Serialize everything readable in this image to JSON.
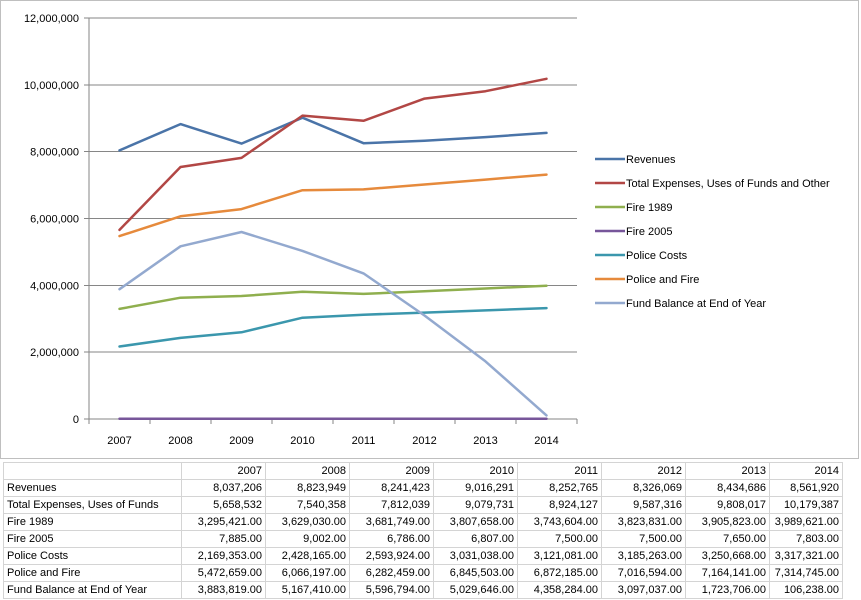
{
  "chart_data": {
    "type": "line",
    "categories": [
      "2007",
      "2008",
      "2009",
      "2010",
      "2011",
      "2012",
      "2013",
      "2014"
    ],
    "ylim": [
      0,
      12000000
    ],
    "yticks": [
      "0",
      "2,000,000",
      "4,000,000",
      "6,000,000",
      "8,000,000",
      "10,000,000",
      "12,000,000"
    ],
    "ytick_values": [
      0,
      2000000,
      4000000,
      6000000,
      8000000,
      10000000,
      12000000
    ],
    "grid": true,
    "legend_position": "right",
    "series": [
      {
        "name": "Revenues",
        "color": "#4a74a8",
        "values": [
          8037206,
          8823949,
          8241423,
          9016291,
          8252765,
          8326069,
          8434686,
          8561920
        ]
      },
      {
        "name": "Total Expenses, Uses of Funds and Other",
        "color": "#b24745",
        "values": [
          5658532,
          7540358,
          7812039,
          9079731,
          8924127,
          9587316,
          9808017,
          10179387
        ]
      },
      {
        "name": "Fire 1989",
        "color": "#8faf4e",
        "values": [
          3295421,
          3629030,
          3681749,
          3807658,
          3743604,
          3823831,
          3905823,
          3989621
        ]
      },
      {
        "name": "Fire 2005",
        "color": "#77569a",
        "values": [
          7885,
          9002,
          6786,
          6807,
          7500,
          7500,
          7650,
          7803
        ]
      },
      {
        "name": "Police Costs",
        "color": "#3b97ad",
        "values": [
          2169353,
          2428165,
          2593924,
          3031038,
          3121081,
          3185263,
          3250668,
          3317321
        ]
      },
      {
        "name": "Police and Fire",
        "color": "#e68a3c",
        "values": [
          5472659,
          6066197,
          6282459,
          6845503,
          6872185,
          7016594,
          7164141,
          7314745
        ]
      },
      {
        "name": "Fund Balance at End of Year",
        "color": "#93a9cf",
        "values": [
          3883819,
          5167410,
          5596794,
          5029646,
          4358284,
          3097037,
          1723706,
          106238
        ]
      }
    ]
  },
  "table": {
    "header": [
      "",
      "2007",
      "2008",
      "2009",
      "2010",
      "2011",
      "2012",
      "2013",
      "2014"
    ],
    "rows": [
      [
        "Revenues",
        "8,037,206",
        "8,823,949",
        "8,241,423",
        "9,016,291",
        "8,252,765",
        "8,326,069",
        "8,434,686",
        "8,561,920"
      ],
      [
        "Total Expenses, Uses of Funds",
        "5,658,532",
        "7,540,358",
        "7,812,039",
        "9,079,731",
        "8,924,127",
        "9,587,316",
        "9,808,017",
        "10,179,387"
      ],
      [
        "Fire 1989",
        "3,295,421.00",
        "3,629,030.00",
        "3,681,749.00",
        "3,807,658.00",
        "3,743,604.00",
        "3,823,831.00",
        "3,905,823.00",
        "3,989,621.00"
      ],
      [
        "Fire 2005",
        "7,885.00",
        "9,002.00",
        "6,786.00",
        "6,807.00",
        "7,500.00",
        "7,500.00",
        "7,650.00",
        "7,803.00"
      ],
      [
        "Police Costs",
        "2,169,353.00",
        "2,428,165.00",
        "2,593,924.00",
        "3,031,038.00",
        "3,121,081.00",
        "3,185,263.00",
        "3,250,668.00",
        "3,317,321.00"
      ],
      [
        "Police and Fire",
        "5,472,659.00",
        "6,066,197.00",
        "6,282,459.00",
        "6,845,503.00",
        "6,872,185.00",
        "7,016,594.00",
        "7,164,141.00",
        "7,314,745.00"
      ],
      [
        "Fund Balance at End of Year",
        "3,883,819.00",
        "5,167,410.00",
        "5,596,794.00",
        "5,029,646.00",
        "4,358,284.00",
        "3,097,037.00",
        "1,723,706.00",
        "106,238.00"
      ]
    ]
  }
}
